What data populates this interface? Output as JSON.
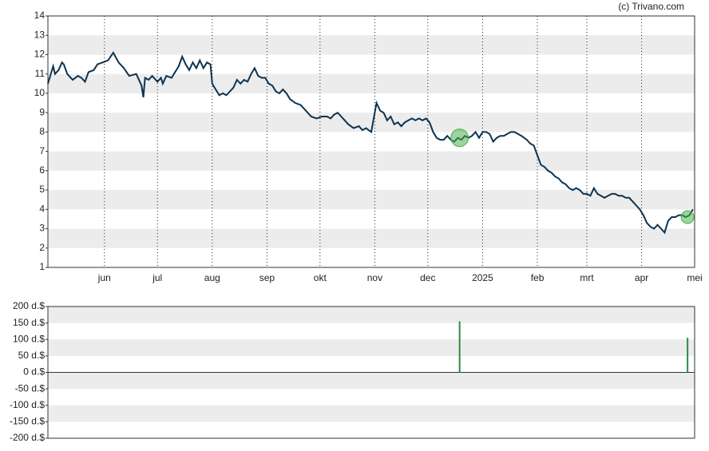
{
  "credit": "(c) Trivano.com",
  "chart_data": [
    {
      "type": "line",
      "xlim": [
        0,
        366
      ],
      "xticks": [
        {
          "value": 32,
          "label": "jun"
        },
        {
          "value": 62,
          "label": "jul"
        },
        {
          "value": 93,
          "label": "aug"
        },
        {
          "value": 124,
          "label": "sep"
        },
        {
          "value": 154,
          "label": "okt"
        },
        {
          "value": 185,
          "label": "nov"
        },
        {
          "value": 215,
          "label": "dec"
        },
        {
          "value": 246,
          "label": "2025"
        },
        {
          "value": 277,
          "label": "feb"
        },
        {
          "value": 305,
          "label": "mrt"
        },
        {
          "value": 336,
          "label": "apr"
        },
        {
          "value": 366,
          "label": "mei"
        }
      ],
      "ylim": [
        1,
        14
      ],
      "yticks": [
        1,
        2,
        3,
        4,
        5,
        6,
        7,
        8,
        9,
        10,
        11,
        12,
        13,
        14
      ],
      "series": [
        {
          "color": "#0d3350",
          "x": [
            0,
            3,
            4,
            6,
            8,
            9,
            11,
            14,
            17,
            19,
            21,
            23,
            26,
            28,
            31,
            34,
            37,
            40,
            43,
            46,
            50,
            53,
            54,
            55,
            57,
            59,
            62,
            64,
            65,
            67,
            70,
            72,
            74,
            76,
            78,
            80,
            82,
            84,
            86,
            88,
            90,
            92,
            93,
            95,
            97,
            99,
            101,
            103,
            105,
            107,
            109,
            111,
            113,
            115,
            117,
            119,
            121,
            123,
            125,
            127,
            129,
            131,
            133,
            135,
            137,
            140,
            143,
            146,
            149,
            152,
            155,
            158,
            160,
            162,
            164,
            166,
            168,
            170,
            173,
            176,
            178,
            180,
            183,
            186,
            188,
            190,
            192,
            194,
            196,
            198,
            200,
            202,
            204,
            206,
            208,
            210,
            212,
            214,
            216,
            218,
            220,
            222,
            224,
            226,
            228,
            230,
            232,
            234,
            236,
            238,
            240,
            242,
            244,
            246,
            248,
            250,
            252,
            254,
            256,
            258,
            260,
            262,
            264,
            266,
            268,
            271,
            273,
            275,
            277,
            279,
            281,
            283,
            285,
            287,
            289,
            291,
            293,
            295,
            297,
            299,
            301,
            303,
            305,
            307,
            309,
            311,
            313,
            315,
            317,
            319,
            321,
            323,
            325,
            327,
            329,
            331,
            333,
            335,
            337,
            339,
            341,
            343,
            345,
            347,
            349,
            351,
            353,
            355,
            357,
            359,
            361,
            363,
            365
          ],
          "values": [
            10.5,
            11.4,
            11.0,
            11.2,
            11.6,
            11.5,
            11.0,
            10.7,
            10.9,
            10.8,
            10.6,
            11.1,
            11.2,
            11.5,
            11.6,
            11.7,
            12.1,
            11.6,
            11.3,
            10.9,
            11.0,
            10.4,
            9.8,
            10.8,
            10.7,
            10.9,
            10.6,
            10.8,
            10.5,
            10.9,
            10.8,
            11.1,
            11.4,
            11.9,
            11.5,
            11.2,
            11.6,
            11.3,
            11.7,
            11.3,
            11.6,
            11.5,
            10.5,
            10.2,
            9.9,
            10.0,
            9.9,
            10.1,
            10.3,
            10.7,
            10.5,
            10.7,
            10.6,
            11.0,
            11.3,
            10.9,
            10.8,
            10.8,
            10.5,
            10.4,
            10.1,
            10.0,
            10.2,
            10.0,
            9.7,
            9.5,
            9.4,
            9.1,
            8.8,
            8.7,
            8.8,
            8.8,
            8.7,
            8.9,
            9.0,
            8.8,
            8.6,
            8.4,
            8.2,
            8.3,
            8.1,
            8.2,
            8.0,
            9.5,
            9.1,
            9.0,
            8.6,
            8.8,
            8.4,
            8.5,
            8.3,
            8.5,
            8.6,
            8.7,
            8.6,
            8.7,
            8.6,
            8.7,
            8.5,
            8.0,
            7.7,
            7.6,
            7.6,
            7.8,
            7.6,
            7.5,
            7.7,
            7.6,
            7.8,
            7.7,
            7.8,
            8.0,
            7.7,
            8.0,
            8.0,
            7.9,
            7.5,
            7.7,
            7.8,
            7.8,
            7.9,
            8.0,
            8.0,
            7.9,
            7.8,
            7.6,
            7.4,
            7.3,
            6.8,
            6.3,
            6.2,
            6.0,
            5.9,
            5.7,
            5.6,
            5.4,
            5.3,
            5.1,
            5.0,
            5.1,
            5.0,
            4.8,
            4.8,
            4.7,
            5.1,
            4.8,
            4.7,
            4.6,
            4.7,
            4.8,
            4.8,
            4.7,
            4.7,
            4.6,
            4.6,
            4.4,
            4.2,
            4.0,
            3.7,
            3.3,
            3.1,
            3.0,
            3.2,
            3.0,
            2.8,
            3.4,
            3.6,
            3.6,
            3.7,
            3.7,
            3.6,
            3.7,
            4.0
          ]
        }
      ],
      "events": {
        "color": "#4caf50",
        "x": [
          233,
          362
        ],
        "values": [
          7.7,
          3.6
        ]
      }
    },
    {
      "type": "bar",
      "xlim": [
        0,
        366
      ],
      "ylim": [
        -200,
        200
      ],
      "yticks": [
        {
          "value": -200,
          "label": "-200 d.$"
        },
        {
          "value": -150,
          "label": "-150 d.$"
        },
        {
          "value": -100,
          "label": "-100 d.$"
        },
        {
          "value": -50,
          "label": "-50 d.$"
        },
        {
          "value": 0,
          "label": "0 d.$"
        },
        {
          "value": 50,
          "label": "50 d.$"
        },
        {
          "value": 100,
          "label": "100 d.$"
        },
        {
          "value": 150,
          "label": "150 d.$"
        },
        {
          "value": 200,
          "label": "200 d.$"
        }
      ],
      "color": "#2e8b3e",
      "x": [
        233,
        362
      ],
      "values": [
        155,
        105
      ]
    }
  ]
}
